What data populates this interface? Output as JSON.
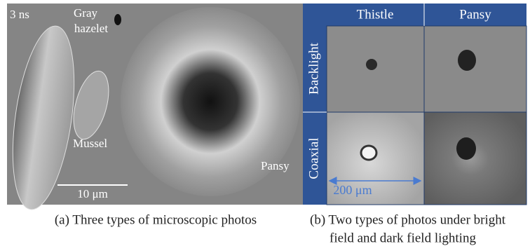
{
  "panel_a": {
    "time_label": "3 ns",
    "gray_hazelet": [
      "Gray",
      "hazelet"
    ],
    "mussel": "Mussel",
    "pansy": "Pansy",
    "scale_bar": "10 μm",
    "caption": "(a) Three types of microscopic photos"
  },
  "panel_b": {
    "columns": [
      "Thistle",
      "Pansy"
    ],
    "rows": [
      "Backlight",
      "Coaxial"
    ],
    "scale_bar": "200 μm",
    "caption": [
      "(b) Two types of photos under bright",
      "field and dark field lighting"
    ]
  }
}
